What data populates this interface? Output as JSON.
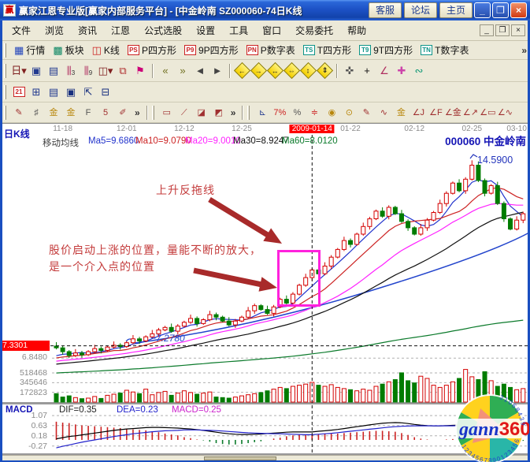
{
  "window": {
    "title": "赢家江恩专业版[赢家内部服务平台] - [中金岭南  SZ000060-74日K线",
    "logo_char": "赢",
    "buttons": {
      "service": "客服",
      "forum": "论坛",
      "home": "主页"
    },
    "controls": {
      "minimize": "_",
      "restore": "❐",
      "close": "×"
    }
  },
  "menu": {
    "items": [
      "文件",
      "浏览",
      "资讯",
      "江恩",
      "公式选股",
      "设置",
      "工具",
      "窗口",
      "交易委托",
      "帮助"
    ],
    "mdi": [
      "_",
      "❐",
      "×"
    ]
  },
  "toolbar_market": {
    "overflow": "»",
    "items": [
      {
        "name": "quotes",
        "glyph": "▦",
        "color": "#2244bb",
        "label": "行情"
      },
      {
        "name": "sectors",
        "glyph": "▩",
        "color": "#118866",
        "label": "板块"
      },
      {
        "name": "kline",
        "glyph": "◫",
        "color": "#cc2222",
        "label": "K线"
      },
      {
        "name": "p-square",
        "badge": "PS",
        "badge_color": "#cc2222",
        "label": "P四方形"
      },
      {
        "name": "nine-p-square",
        "badge": "P9",
        "badge_color": "#cc2222",
        "label": "9P四方形"
      },
      {
        "name": "p-number-table",
        "badge": "PN",
        "badge_color": "#cc2222",
        "label": "P数字表"
      },
      {
        "name": "t-square",
        "badge": "TS",
        "badge_color": "#0d9488",
        "label": "T四方形"
      },
      {
        "name": "nine-t-square",
        "badge": "T9",
        "badge_color": "#0d9488",
        "label": "9T四方形"
      },
      {
        "name": "t-number-table",
        "badge": "TN",
        "badge_color": "#0d9488",
        "label": "T数字表"
      }
    ]
  },
  "toolbar_tools": {
    "groups": [
      {
        "kind": "plain",
        "items": [
          {
            "name": "period-dropdown",
            "glyph": "日▾",
            "color": "#802020"
          },
          {
            "name": "chart-window",
            "glyph": "▣",
            "color": "#223a8f"
          },
          {
            "name": "info-note",
            "glyph": "▤",
            "color": "#223a8f"
          },
          {
            "name": "bars-3",
            "glyph": "⫼",
            "sub": "3",
            "color": "#b03060"
          },
          {
            "name": "bars-9",
            "glyph": "⫼",
            "sub": "9",
            "color": "#b03060"
          },
          {
            "name": "candle-style-dropdown",
            "glyph": "◫▾",
            "color": "#802020"
          },
          {
            "name": "pattern",
            "glyph": "⧉",
            "color": "#b03030"
          },
          {
            "name": "volume-flag",
            "glyph": "⚑",
            "color": "#cc0077"
          }
        ]
      },
      {
        "kind": "plain",
        "items": [
          {
            "name": "first-page",
            "glyph": "«",
            "color": "#6f6f1f"
          },
          {
            "name": "last-page",
            "glyph": "»",
            "color": "#6f6f1f"
          },
          {
            "name": "step-back",
            "glyph": "◄",
            "color": "#444"
          },
          {
            "name": "step-forward",
            "glyph": "►",
            "color": "#444"
          }
        ]
      },
      {
        "kind": "diamond",
        "items": [
          {
            "name": "pan-left",
            "glyph": "←"
          },
          {
            "name": "pan-right",
            "glyph": "→"
          },
          {
            "name": "expand-horizontal",
            "glyph": "↔"
          },
          {
            "name": "shrink-horizontal",
            "glyph": "⇔"
          },
          {
            "name": "expand-vertical",
            "glyph": "↕"
          },
          {
            "name": "shrink-vertical",
            "glyph": "⇕"
          }
        ]
      },
      {
        "kind": "plain",
        "items": [
          {
            "name": "hand-tool",
            "glyph": "✜",
            "color": "#555"
          },
          {
            "name": "crosshair-tool",
            "glyph": "+",
            "color": "#111"
          },
          {
            "name": "angle-measure-tool",
            "glyph": "∠",
            "color": "#b03060"
          },
          {
            "name": "mark-pink-tool",
            "glyph": "✚",
            "color": "#cc44aa"
          },
          {
            "name": "mark-green-tool",
            "glyph": "∾",
            "color": "#119977"
          }
        ]
      }
    ]
  },
  "toolbar_file": {
    "items": [
      {
        "name": "calendar",
        "badge": "21",
        "badge_color": "#cc2222"
      },
      {
        "name": "calculator",
        "glyph": "⊞",
        "color": "#223a8f"
      },
      {
        "name": "notepad",
        "glyph": "▤",
        "color": "#223a8f"
      },
      {
        "name": "save",
        "glyph": "▣",
        "color": "#18307f"
      },
      {
        "name": "export",
        "glyph": "⇱",
        "color": "#18307f"
      },
      {
        "name": "print",
        "glyph": "⊟",
        "color": "#18307f"
      }
    ]
  },
  "toolbar_draw": {
    "groups": [
      {
        "overflow": "»",
        "items": [
          {
            "name": "pen-tool",
            "glyph": "✎",
            "color": "#a03030"
          },
          {
            "name": "gann-grid",
            "glyph": "♯",
            "color": "#555"
          },
          {
            "name": "gann-gold-box",
            "glyph": "金",
            "color": "#b8860b"
          },
          {
            "name": "gann-gold-box-2",
            "glyph": "金",
            "color": "#b8860b"
          },
          {
            "name": "tool-f",
            "glyph": "F",
            "color": "#555"
          },
          {
            "name": "tool-5",
            "glyph": "5",
            "color": "#a03030"
          },
          {
            "name": "pen-red",
            "glyph": "✐",
            "color": "#a03030"
          }
        ]
      },
      {
        "overflow": "»",
        "items": [
          {
            "name": "frame-tool",
            "glyph": "▭",
            "color": "#a03030"
          },
          {
            "name": "rays-tool",
            "glyph": "⟋",
            "color": "#a03030"
          },
          {
            "name": "fan-tool",
            "glyph": "◪",
            "color": "#a03030"
          },
          {
            "name": "fan-shade-tool",
            "glyph": "◩",
            "color": "#a03030"
          }
        ]
      },
      {
        "overflow": "",
        "items": [
          {
            "name": "scale-ruler",
            "glyph": "⊾",
            "color": "#223a8f"
          },
          {
            "name": "percent-7",
            "glyph": "7%",
            "color": "#cc2222"
          },
          {
            "name": "percent",
            "glyph": "%",
            "color": "#555"
          },
          {
            "name": "percent-lines",
            "glyph": "≑",
            "color": "#cc2222"
          },
          {
            "name": "gold-circle",
            "glyph": "◉",
            "color": "#b8860b"
          },
          {
            "name": "gold-ring",
            "glyph": "⊙",
            "color": "#b8860b"
          },
          {
            "name": "candle-pen",
            "glyph": "✎",
            "color": "#a03030"
          },
          {
            "name": "wave-tool",
            "glyph": "∿",
            "color": "#a03030"
          },
          {
            "name": "gold-under",
            "glyph": "金",
            "color": "#b8860b"
          },
          {
            "name": "angle-j",
            "glyph": "∠J",
            "color": "#a03030"
          },
          {
            "name": "angle-f",
            "glyph": "∠F",
            "color": "#a03030"
          },
          {
            "name": "angle-gold",
            "glyph": "∠金",
            "color": "#a03030"
          },
          {
            "name": "angle-rise",
            "glyph": "∠↗",
            "color": "#a03030"
          },
          {
            "name": "angle-box",
            "glyph": "∠▭",
            "color": "#a03030"
          },
          {
            "name": "angle-wave",
            "glyph": "∠∿",
            "color": "#a03030"
          }
        ]
      }
    ]
  },
  "chart": {
    "type": "candlestick+volume+macd",
    "panel_label": "日K线",
    "stock_code": "000060",
    "stock_name": "中金岭南",
    "ma_header": {
      "title": "移动均线",
      "ma5": "Ma5=9.6860",
      "ma10": "Ma10=9.0790",
      "ma20": "Ma20=9.0010",
      "ma30": "Ma30=8.9247",
      "ma60": "Ma60=8.0120"
    },
    "dates": [
      {
        "label": "11-18",
        "bar": 1
      },
      {
        "label": "12-01",
        "bar": 11
      },
      {
        "label": "12-12",
        "bar": 20
      },
      {
        "label": "12-25",
        "bar": 29
      },
      {
        "label": "2009-01-14",
        "bar": 40,
        "highlight": true
      },
      {
        "label": "01-22",
        "bar": 46
      },
      {
        "label": "02-12",
        "bar": 56
      },
      {
        "label": "02-25",
        "bar": 65
      },
      {
        "label": "03-10",
        "bar": 72
      }
    ],
    "price_marks": {
      "crosshair_price": "7.3301",
      "grid_price": "6.8480",
      "peak_label": "14.5900",
      "trendline_label": "~7.2780"
    },
    "volume_scale": [
      "518468",
      "345646",
      "172823"
    ],
    "macd": {
      "label": "MACD",
      "dif_label": "DIF=0.35",
      "dea_label": "DEA=0.23",
      "macd_label": "MACD=0.25",
      "scale": [
        "1.07",
        "0.63",
        "0.18",
        "-0.27"
      ],
      "dif": [
        0.05,
        0.1,
        0.15,
        0.18,
        0.22,
        0.26,
        0.3,
        0.34,
        0.38,
        0.42,
        0.45,
        0.48,
        0.5,
        0.52,
        0.54,
        0.55,
        0.55,
        0.54,
        0.53,
        0.52,
        0.5,
        0.48,
        0.45,
        0.42,
        0.38,
        0.34,
        0.3,
        0.27,
        0.25,
        0.24,
        0.24,
        0.25,
        0.26,
        0.28,
        0.3,
        0.32,
        0.34,
        0.35,
        0.35,
        0.35,
        0.35,
        0.38,
        0.4,
        0.43,
        0.46,
        0.5,
        0.54,
        0.58,
        0.62,
        0.66,
        0.7,
        0.73,
        0.75,
        0.76,
        0.75,
        0.72,
        0.68,
        0.65,
        0.63,
        0.62,
        0.62,
        0.63,
        0.64,
        0.65,
        0.66,
        0.66,
        0.65,
        0.64,
        0.62,
        0.6,
        0.58,
        0.57,
        0.57,
        0.58
      ],
      "dea": [
        -0.35,
        -0.28,
        -0.22,
        -0.16,
        -0.1,
        -0.05,
        0.0,
        0.05,
        0.1,
        0.15,
        0.19,
        0.23,
        0.27,
        0.3,
        0.33,
        0.36,
        0.38,
        0.4,
        0.41,
        0.42,
        0.44,
        0.44,
        0.44,
        0.43,
        0.42,
        0.41,
        0.39,
        0.37,
        0.35,
        0.33,
        0.31,
        0.3,
        0.29,
        0.28,
        0.27,
        0.27,
        0.26,
        0.25,
        0.24,
        0.23,
        0.23,
        0.25,
        0.27,
        0.29,
        0.32,
        0.35,
        0.38,
        0.41,
        0.44,
        0.47,
        0.5,
        0.53,
        0.56,
        0.58,
        0.6,
        0.61,
        0.62,
        0.62,
        0.62,
        0.62,
        0.62,
        0.62,
        0.62,
        0.63,
        0.63,
        0.64,
        0.64,
        0.64,
        0.64,
        0.63,
        0.62,
        0.61,
        0.6,
        0.6
      ]
    },
    "candles": [
      [
        7.32,
        7.47,
        7.19,
        7.25
      ],
      [
        7.25,
        7.33,
        6.98,
        7.1
      ],
      [
        7.1,
        7.16,
        6.85,
        6.95
      ],
      [
        6.95,
        7.2,
        6.89,
        7.05
      ],
      [
        7.05,
        7.13,
        6.86,
        6.98
      ],
      [
        6.98,
        7.16,
        6.93,
        7.1
      ],
      [
        7.1,
        7.37,
        7.04,
        7.22
      ],
      [
        7.22,
        7.3,
        7.03,
        7.15
      ],
      [
        7.15,
        7.34,
        7.1,
        7.28
      ],
      [
        7.28,
        7.5,
        7.22,
        7.35
      ],
      [
        7.35,
        7.43,
        7.18,
        7.3
      ],
      [
        7.3,
        7.51,
        7.25,
        7.45
      ],
      [
        7.45,
        7.75,
        7.39,
        7.6
      ],
      [
        7.6,
        7.68,
        7.4,
        7.52
      ],
      [
        7.52,
        7.74,
        7.47,
        7.68
      ],
      [
        7.68,
        7.95,
        7.62,
        7.8
      ],
      [
        7.8,
        8.03,
        7.68,
        7.95
      ],
      [
        7.95,
        8.11,
        7.9,
        8.05
      ],
      [
        8.05,
        8.2,
        7.84,
        7.9
      ],
      [
        7.9,
        8.18,
        7.78,
        8.1
      ],
      [
        8.1,
        8.31,
        8.05,
        8.25
      ],
      [
        8.25,
        8.55,
        8.19,
        8.4
      ],
      [
        8.4,
        8.48,
        8.08,
        8.2
      ],
      [
        8.2,
        8.41,
        8.15,
        8.35
      ],
      [
        8.35,
        8.7,
        8.29,
        8.55
      ],
      [
        8.55,
        8.63,
        8.33,
        8.45
      ],
      [
        8.45,
        8.51,
        8.25,
        8.3
      ],
      [
        8.3,
        8.45,
        8.09,
        8.15
      ],
      [
        8.15,
        8.38,
        8.03,
        8.3
      ],
      [
        8.3,
        8.51,
        8.25,
        8.45
      ],
      [
        8.45,
        8.85,
        8.39,
        8.7
      ],
      [
        8.7,
        8.98,
        8.58,
        8.9
      ],
      [
        8.9,
        8.96,
        8.7,
        8.75
      ],
      [
        8.75,
        8.9,
        8.54,
        8.6
      ],
      [
        8.6,
        8.93,
        8.48,
        8.85
      ],
      [
        8.85,
        9.21,
        8.8,
        9.15
      ],
      [
        9.15,
        9.3,
        8.94,
        9.0
      ],
      [
        9.0,
        9.43,
        8.88,
        9.35
      ],
      [
        9.35,
        9.76,
        9.3,
        9.7
      ],
      [
        9.7,
        10.15,
        9.64,
        10.0
      ],
      [
        10.0,
        10.38,
        9.88,
        10.3
      ],
      [
        10.3,
        10.36,
        10.1,
        10.15
      ],
      [
        10.15,
        10.6,
        10.09,
        10.45
      ],
      [
        10.45,
        10.88,
        10.33,
        10.8
      ],
      [
        10.8,
        11.16,
        10.75,
        11.1
      ],
      [
        11.1,
        11.6,
        11.04,
        11.45
      ],
      [
        11.45,
        11.53,
        11.18,
        11.3
      ],
      [
        11.3,
        11.76,
        11.25,
        11.7
      ],
      [
        11.7,
        12.15,
        11.64,
        12.0
      ],
      [
        12.0,
        12.38,
        11.88,
        12.3
      ],
      [
        12.3,
        12.66,
        12.25,
        12.6
      ],
      [
        12.6,
        12.75,
        12.34,
        12.4
      ],
      [
        12.4,
        12.83,
        12.28,
        12.75
      ],
      [
        12.75,
        12.81,
        12.45,
        12.5
      ],
      [
        12.5,
        12.65,
        12.14,
        12.2
      ],
      [
        12.2,
        12.28,
        11.83,
        11.95
      ],
      [
        11.95,
        12.01,
        11.65,
        11.7
      ],
      [
        11.7,
        12.1,
        11.64,
        11.95
      ],
      [
        11.95,
        12.33,
        11.83,
        12.25
      ],
      [
        12.25,
        12.61,
        12.2,
        12.55
      ],
      [
        12.55,
        13.05,
        12.49,
        12.9
      ],
      [
        12.9,
        13.38,
        12.78,
        13.3
      ],
      [
        13.3,
        13.76,
        13.25,
        13.7
      ],
      [
        13.7,
        13.85,
        13.34,
        13.4
      ],
      [
        13.4,
        13.93,
        13.28,
        13.85
      ],
      [
        13.85,
        14.59,
        13.8,
        14.4
      ],
      [
        14.4,
        14.55,
        13.74,
        13.8
      ],
      [
        13.8,
        13.88,
        13.18,
        13.3
      ],
      [
        13.3,
        13.66,
        13.25,
        13.6
      ],
      [
        13.6,
        13.75,
        12.84,
        12.9
      ],
      [
        12.9,
        12.98,
        12.18,
        12.3
      ],
      [
        12.3,
        12.36,
        11.85,
        11.9
      ],
      [
        11.9,
        12.4,
        11.84,
        12.25
      ],
      [
        12.25,
        12.58,
        12.13,
        12.5
      ]
    ],
    "volumes_k": [
      150,
      90,
      110,
      80,
      60,
      70,
      100,
      65,
      120,
      140,
      160,
      210,
      180,
      150,
      230,
      130,
      170,
      190,
      120,
      160,
      200,
      170,
      140,
      160,
      180,
      90,
      80,
      70,
      90,
      110,
      130,
      150,
      170,
      200,
      230,
      260,
      240,
      280,
      300,
      320,
      350,
      300,
      280,
      310,
      260,
      240,
      220,
      200,
      230,
      210,
      280,
      320,
      360,
      400,
      520,
      380,
      340,
      460,
      420,
      300,
      260,
      300,
      360,
      420,
      580,
      450,
      400,
      540,
      380,
      280,
      320,
      260,
      220,
      240
    ],
    "crosshair_bar": 40,
    "colors": {
      "up": "#d40000",
      "down": "#007c00",
      "ma5": "#2233cc",
      "ma10": "#cc2222",
      "ma20": "#ff22ff",
      "ma30": "#111111",
      "ma60": "#0b7a2b",
      "dif_line": "#000000",
      "dea_line": "#2222cc",
      "hist_pos": "#cc2222",
      "hist_neg": "#0a7a2a",
      "highlight_box": "#ff22dd",
      "annotation": "#c43c3c",
      "arrow": "#a82a2a",
      "grid": "#b0b0b0"
    },
    "annotations": {
      "rising_line_note": "上升反拖线",
      "entry_note_line1": "股价启动上涨的位置，量能不断的放大，",
      "entry_note_line2": "是一个介入点的位置"
    }
  },
  "logo": {
    "text1": "gann",
    "text2": "360",
    "digits_top": "2106843951",
    "digits_bottom": "12345678901234567890"
  }
}
